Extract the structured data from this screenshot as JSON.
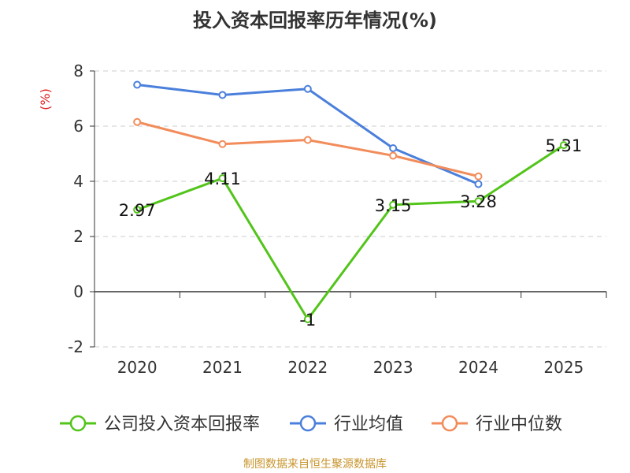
{
  "chart_data": {
    "type": "line",
    "title": "投入资本回报率历年情况(%)",
    "ylabel": "(%)",
    "categories": [
      "2020",
      "2021",
      "2022",
      "2023",
      "2024",
      "2025"
    ],
    "ylim": [
      -2,
      8
    ],
    "yticks": [
      -2,
      0,
      2,
      4,
      6,
      8
    ],
    "grid": true,
    "legend_position": "bottom",
    "series": [
      {
        "name": "公司投入资本回报率",
        "color": "#52c41a",
        "values": [
          2.97,
          4.11,
          -1,
          3.15,
          3.28,
          5.31
        ],
        "labels": [
          "2.97",
          "4.11",
          "-1",
          "3.15",
          "3.28",
          "5.31"
        ]
      },
      {
        "name": "行业均值",
        "color": "#4a7fdc",
        "values": [
          7.5,
          7.13,
          7.35,
          5.2,
          3.9,
          null
        ]
      },
      {
        "name": "行业中位数",
        "color": "#f28c5a",
        "values": [
          6.15,
          5.35,
          5.5,
          4.93,
          4.18,
          null
        ]
      }
    ]
  },
  "footer": {
    "source": "制图数据来自恒生聚源数据库"
  }
}
